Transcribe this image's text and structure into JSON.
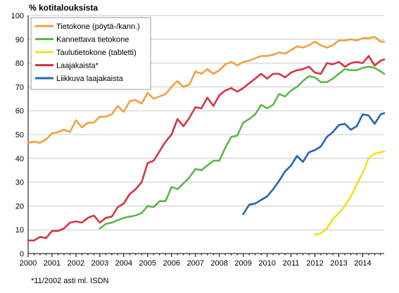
{
  "chart_data": {
    "type": "line",
    "ylabel": "% kotitalouksista",
    "ylim": [
      0,
      100
    ],
    "yticks": [
      0,
      10,
      20,
      30,
      40,
      50,
      60,
      70,
      80,
      90,
      100
    ],
    "xlim": [
      2000,
      2014.9
    ],
    "xticks": [
      2000,
      2001,
      2002,
      2003,
      2004,
      2005,
      2006,
      2007,
      2008,
      2009,
      2010,
      2011,
      2012,
      2013,
      2014
    ],
    "xticklabels": [
      "2000",
      "2001",
      "2002",
      "2003",
      "2004",
      "2005",
      "2006",
      "2007",
      "2008",
      "2009",
      "2010",
      "2011",
      "2012",
      "2013",
      "2014"
    ],
    "grid": true,
    "legend": "top-left",
    "series": [
      {
        "name": "Tietokone (pöytä-/kann.)",
        "color": "#f2a040",
        "points": [
          [
            2000.0,
            46.5
          ],
          [
            2000.25,
            47
          ],
          [
            2000.5,
            46.5
          ],
          [
            2000.75,
            48
          ],
          [
            2001.0,
            50.5
          ],
          [
            2001.25,
            51
          ],
          [
            2001.5,
            52
          ],
          [
            2001.75,
            51
          ],
          [
            2002.0,
            56
          ],
          [
            2002.25,
            53
          ],
          [
            2002.5,
            55
          ],
          [
            2002.75,
            55
          ],
          [
            2003.0,
            57.5
          ],
          [
            2003.25,
            57.5
          ],
          [
            2003.5,
            58.5
          ],
          [
            2003.75,
            62
          ],
          [
            2004.0,
            59.5
          ],
          [
            2004.25,
            64
          ],
          [
            2004.5,
            64.5
          ],
          [
            2004.75,
            63
          ],
          [
            2005.0,
            67.5
          ],
          [
            2005.25,
            65
          ],
          [
            2005.5,
            66
          ],
          [
            2005.75,
            67
          ],
          [
            2006.0,
            70
          ],
          [
            2006.25,
            72.5
          ],
          [
            2006.5,
            70
          ],
          [
            2006.75,
            71
          ],
          [
            2007.0,
            76.5
          ],
          [
            2007.25,
            75.5
          ],
          [
            2007.5,
            77.5
          ],
          [
            2007.75,
            75.5
          ],
          [
            2008.0,
            77
          ],
          [
            2008.25,
            79.5
          ],
          [
            2008.5,
            80.5
          ],
          [
            2008.75,
            79
          ],
          [
            2009.0,
            80.5
          ],
          [
            2009.25,
            81
          ],
          [
            2009.5,
            82
          ],
          [
            2009.75,
            83
          ],
          [
            2010.0,
            83
          ],
          [
            2010.25,
            83.5
          ],
          [
            2010.5,
            84.5
          ],
          [
            2010.75,
            84
          ],
          [
            2011.0,
            85.5
          ],
          [
            2011.25,
            87
          ],
          [
            2011.5,
            86.5
          ],
          [
            2011.75,
            87.5
          ],
          [
            2012.0,
            89
          ],
          [
            2012.25,
            87.5
          ],
          [
            2012.5,
            86.5
          ],
          [
            2012.75,
            87.5
          ],
          [
            2013.0,
            89.5
          ],
          [
            2013.25,
            89.5
          ],
          [
            2013.5,
            90
          ],
          [
            2013.75,
            89.5
          ],
          [
            2014.0,
            90.5
          ],
          [
            2014.25,
            90.5
          ],
          [
            2014.5,
            91
          ],
          [
            2014.75,
            89
          ],
          [
            2014.9,
            89
          ]
        ]
      },
      {
        "name": "Kannettava tietokone",
        "color": "#5ab848",
        "points": [
          [
            2003.0,
            10.5
          ],
          [
            2003.25,
            12.5
          ],
          [
            2003.5,
            13
          ],
          [
            2003.75,
            14
          ],
          [
            2004.0,
            15
          ],
          [
            2004.25,
            15.5
          ],
          [
            2004.5,
            16
          ],
          [
            2004.75,
            17
          ],
          [
            2005.0,
            20
          ],
          [
            2005.25,
            19.5
          ],
          [
            2005.5,
            22
          ],
          [
            2005.75,
            22
          ],
          [
            2006.0,
            28
          ],
          [
            2006.25,
            27
          ],
          [
            2006.5,
            29.5
          ],
          [
            2006.75,
            32
          ],
          [
            2007.0,
            35.5
          ],
          [
            2007.25,
            35
          ],
          [
            2007.5,
            37
          ],
          [
            2007.75,
            39
          ],
          [
            2008.0,
            39
          ],
          [
            2008.25,
            44.5
          ],
          [
            2008.5,
            49
          ],
          [
            2008.75,
            49.5
          ],
          [
            2009.0,
            55
          ],
          [
            2009.25,
            56.5
          ],
          [
            2009.5,
            58.5
          ],
          [
            2009.75,
            62.5
          ],
          [
            2010.0,
            61
          ],
          [
            2010.25,
            62.5
          ],
          [
            2010.5,
            67
          ],
          [
            2010.75,
            66
          ],
          [
            2011.0,
            68.5
          ],
          [
            2011.25,
            70
          ],
          [
            2011.5,
            72.5
          ],
          [
            2011.75,
            74.5
          ],
          [
            2012.0,
            74
          ],
          [
            2012.25,
            72
          ],
          [
            2012.5,
            72
          ],
          [
            2012.75,
            73.5
          ],
          [
            2013.0,
            75.5
          ],
          [
            2013.25,
            77.5
          ],
          [
            2013.5,
            77
          ],
          [
            2013.75,
            77
          ],
          [
            2014.0,
            78
          ],
          [
            2014.25,
            78.5
          ],
          [
            2014.5,
            78
          ],
          [
            2014.75,
            76.5
          ],
          [
            2014.9,
            75.5
          ]
        ]
      },
      {
        "name": "Taulutietokone (tabletti)",
        "color": "#f2e01e",
        "points": [
          [
            2012.0,
            8
          ],
          [
            2012.25,
            8.5
          ],
          [
            2012.5,
            10.5
          ],
          [
            2012.75,
            14.5
          ],
          [
            2013.0,
            17
          ],
          [
            2013.25,
            20
          ],
          [
            2013.5,
            24
          ],
          [
            2013.75,
            29
          ],
          [
            2014.0,
            34
          ],
          [
            2014.25,
            40
          ],
          [
            2014.5,
            42
          ],
          [
            2014.75,
            42.5
          ],
          [
            2014.9,
            43
          ]
        ]
      },
      {
        "name": "Laajakaista*",
        "color": "#d13643",
        "points": [
          [
            2000.0,
            5.5
          ],
          [
            2000.25,
            5.5
          ],
          [
            2000.5,
            7
          ],
          [
            2000.75,
            6.5
          ],
          [
            2001.0,
            9.5
          ],
          [
            2001.25,
            9.5
          ],
          [
            2001.5,
            10.5
          ],
          [
            2001.75,
            13
          ],
          [
            2002.0,
            13.5
          ],
          [
            2002.25,
            13
          ],
          [
            2002.5,
            15
          ],
          [
            2002.75,
            16
          ],
          [
            2003.0,
            13
          ],
          [
            2003.25,
            15
          ],
          [
            2003.5,
            15.5
          ],
          [
            2003.75,
            19.5
          ],
          [
            2004.0,
            21
          ],
          [
            2004.25,
            25
          ],
          [
            2004.5,
            27
          ],
          [
            2004.75,
            30
          ],
          [
            2005.0,
            38
          ],
          [
            2005.25,
            39
          ],
          [
            2005.5,
            43
          ],
          [
            2005.75,
            47
          ],
          [
            2006.0,
            50
          ],
          [
            2006.25,
            56.5
          ],
          [
            2006.5,
            53.5
          ],
          [
            2006.75,
            57
          ],
          [
            2007.0,
            61.5
          ],
          [
            2007.25,
            61
          ],
          [
            2007.5,
            65.5
          ],
          [
            2007.75,
            62
          ],
          [
            2008.0,
            66.5
          ],
          [
            2008.25,
            68.5
          ],
          [
            2008.5,
            69.5
          ],
          [
            2008.75,
            68
          ],
          [
            2009.0,
            69.5
          ],
          [
            2009.25,
            71.5
          ],
          [
            2009.5,
            73.5
          ],
          [
            2009.75,
            75.5
          ],
          [
            2010.0,
            73.5
          ],
          [
            2010.25,
            75.5
          ],
          [
            2010.5,
            75.5
          ],
          [
            2010.75,
            74
          ],
          [
            2011.0,
            76
          ],
          [
            2011.25,
            77
          ],
          [
            2011.5,
            77.5
          ],
          [
            2011.75,
            78.5
          ],
          [
            2012.0,
            76
          ],
          [
            2012.25,
            75.5
          ],
          [
            2012.5,
            80
          ],
          [
            2012.75,
            79.5
          ],
          [
            2013.0,
            80.5
          ],
          [
            2013.25,
            78.5
          ],
          [
            2013.5,
            80
          ],
          [
            2013.75,
            80.5
          ],
          [
            2014.0,
            80
          ],
          [
            2014.25,
            83
          ],
          [
            2014.5,
            79
          ],
          [
            2014.75,
            81
          ],
          [
            2014.9,
            81.5
          ]
        ]
      },
      {
        "name": "Liikkuva laajakaista",
        "color": "#2266b5",
        "points": [
          [
            2009.0,
            16.5
          ],
          [
            2009.25,
            20.5
          ],
          [
            2009.5,
            21
          ],
          [
            2009.75,
            22.5
          ],
          [
            2010.0,
            24
          ],
          [
            2010.25,
            27
          ],
          [
            2010.5,
            30.5
          ],
          [
            2010.75,
            34.5
          ],
          [
            2011.0,
            37
          ],
          [
            2011.25,
            41
          ],
          [
            2011.5,
            38.5
          ],
          [
            2011.75,
            42.5
          ],
          [
            2012.0,
            43.5
          ],
          [
            2012.25,
            45
          ],
          [
            2012.5,
            49
          ],
          [
            2012.75,
            51
          ],
          [
            2013.0,
            54
          ],
          [
            2013.25,
            54.5
          ],
          [
            2013.5,
            52
          ],
          [
            2013.75,
            53.5
          ],
          [
            2014.0,
            58.5
          ],
          [
            2014.25,
            58
          ],
          [
            2014.5,
            54.5
          ],
          [
            2014.75,
            58.5
          ],
          [
            2014.9,
            59
          ]
        ]
      }
    ],
    "footnote": "*11/2002 asti ml. ISDN"
  }
}
